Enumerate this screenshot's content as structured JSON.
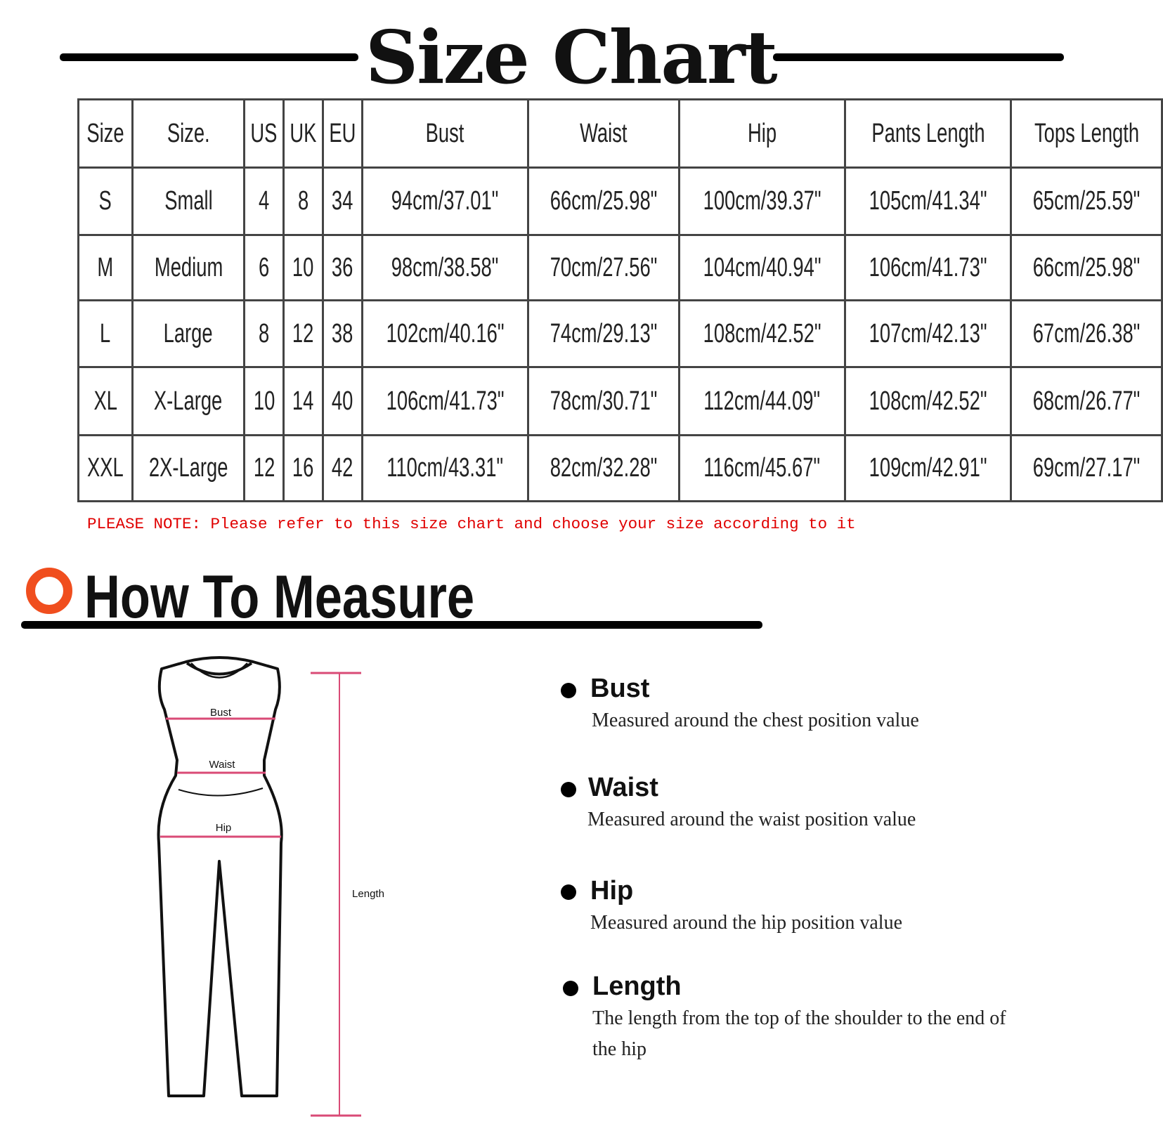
{
  "title": "Size Chart",
  "table": {
    "headers": [
      "Size",
      "Size.",
      "US",
      "UK",
      "EU",
      "Bust",
      "Waist",
      "Hip",
      "Pants Length",
      "Tops Length"
    ],
    "rows": [
      [
        "S",
        "Small",
        "4",
        "8",
        "34",
        "94cm/37.01\"",
        "66cm/25.98\"",
        "100cm/39.37\"",
        "105cm/41.34\"",
        "65cm/25.59\""
      ],
      [
        "M",
        "Medium",
        "6",
        "10",
        "36",
        "98cm/38.58\"",
        "70cm/27.56\"",
        "104cm/40.94\"",
        "106cm/41.73\"",
        "66cm/25.98\""
      ],
      [
        "L",
        "Large",
        "8",
        "12",
        "38",
        "102cm/40.16\"",
        "74cm/29.13\"",
        "108cm/42.52\"",
        "107cm/42.13\"",
        "67cm/26.38\""
      ],
      [
        "XL",
        "X-Large",
        "10",
        "14",
        "40",
        "106cm/41.73\"",
        "78cm/30.71\"",
        "112cm/44.09\"",
        "108cm/42.52\"",
        "68cm/26.77\""
      ],
      [
        "XXL",
        "2X-Large",
        "12",
        "16",
        "42",
        "110cm/43.31\"",
        "82cm/32.28\"",
        "116cm/45.67\"",
        "109cm/42.91\"",
        "69cm/27.17\""
      ]
    ]
  },
  "note": "PLEASE NOTE: Please refer to this size chart and choose your size according to it",
  "measure": {
    "title": "How To Measure",
    "accent_color": "#f04e1e",
    "figure_labels": {
      "bust": "Bust",
      "waist": "Waist",
      "hip": "Hip",
      "length": "Length"
    },
    "items": [
      {
        "heading": "Bust",
        "desc": "Measured around the chest position value"
      },
      {
        "heading": "Waist",
        "desc": "Measured around the waist position value"
      },
      {
        "heading": "Hip",
        "desc": "Measured around the  hip position value"
      },
      {
        "heading": "Length",
        "desc": "The length from the top of the shoulder to the end of the hip"
      }
    ]
  }
}
